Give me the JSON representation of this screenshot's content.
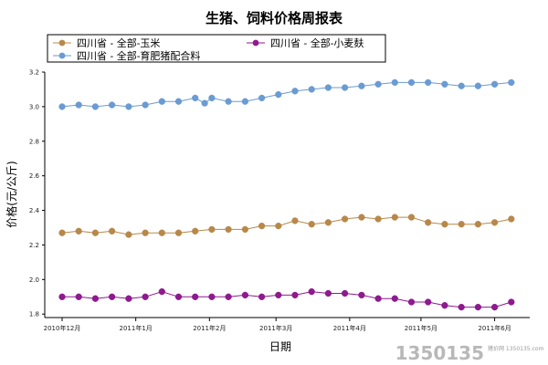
{
  "chart_data": {
    "type": "line",
    "title": "生猪、饲料价格周报表",
    "xlabel": "日期",
    "ylabel": "价格(元/公斤)",
    "ylim": [
      1.78,
      3.2
    ],
    "yticks": [
      "1.8",
      "2.0",
      "2.2",
      "2.4",
      "2.6",
      "2.8",
      "3.0",
      "3.2"
    ],
    "xticks": [
      "2010年12月",
      "2011年1月",
      "2011年2月",
      "2011年3月",
      "2011年4月",
      "2011年5月",
      "2011年6月"
    ],
    "grid": false,
    "legend_position": "top",
    "x_date_start": "2010-12-01",
    "x_date_end": "2011-06-10",
    "series": [
      {
        "name": "四川省 - 全部-玉米",
        "color": "#B8884A",
        "marker": "circle",
        "x": [
          "2010-12-01",
          "2010-12-08",
          "2010-12-15",
          "2010-12-22",
          "2010-12-29",
          "2011-01-05",
          "2011-01-12",
          "2011-01-19",
          "2011-01-26",
          "2011-02-02",
          "2011-02-09",
          "2011-02-16",
          "2011-02-23",
          "2011-03-02",
          "2011-03-09",
          "2011-03-16",
          "2011-03-23",
          "2011-03-30",
          "2011-04-06",
          "2011-04-13",
          "2011-04-20",
          "2011-04-27",
          "2011-05-04",
          "2011-05-11",
          "2011-05-18",
          "2011-05-25",
          "2011-06-01",
          "2011-06-08"
        ],
        "values": [
          2.27,
          2.28,
          2.27,
          2.28,
          2.26,
          2.27,
          2.27,
          2.27,
          2.28,
          2.29,
          2.29,
          2.29,
          2.31,
          2.31,
          2.34,
          2.32,
          2.33,
          2.35,
          2.36,
          2.35,
          2.36,
          2.36,
          2.33,
          2.32,
          2.32,
          2.32,
          2.33,
          2.35
        ]
      },
      {
        "name": "四川省 - 全部-小麦麸",
        "color": "#8E1A8E",
        "marker": "circle",
        "x": [
          "2010-12-01",
          "2010-12-08",
          "2010-12-15",
          "2010-12-22",
          "2010-12-29",
          "2011-01-05",
          "2011-01-12",
          "2011-01-19",
          "2011-01-26",
          "2011-02-02",
          "2011-02-09",
          "2011-02-16",
          "2011-02-23",
          "2011-03-02",
          "2011-03-09",
          "2011-03-16",
          "2011-03-23",
          "2011-03-30",
          "2011-04-06",
          "2011-04-13",
          "2011-04-20",
          "2011-04-27",
          "2011-05-04",
          "2011-05-11",
          "2011-05-18",
          "2011-05-25",
          "2011-06-01",
          "2011-06-08"
        ],
        "values": [
          1.9,
          1.9,
          1.89,
          1.9,
          1.89,
          1.9,
          1.93,
          1.9,
          1.9,
          1.9,
          1.9,
          1.91,
          1.9,
          1.91,
          1.91,
          1.93,
          1.92,
          1.92,
          1.91,
          1.89,
          1.89,
          1.87,
          1.87,
          1.85,
          1.84,
          1.84,
          1.84,
          1.87
        ]
      },
      {
        "name": "四川省 - 全部-育肥猪配合料",
        "color": "#6A9BD2",
        "marker": "circle",
        "x": [
          "2010-12-01",
          "2010-12-08",
          "2010-12-15",
          "2010-12-22",
          "2010-12-29",
          "2011-01-05",
          "2011-01-12",
          "2011-01-19",
          "2011-01-26",
          "2011-01-30",
          "2011-02-02",
          "2011-02-09",
          "2011-02-16",
          "2011-02-23",
          "2011-03-02",
          "2011-03-09",
          "2011-03-16",
          "2011-03-23",
          "2011-03-30",
          "2011-04-06",
          "2011-04-13",
          "2011-04-20",
          "2011-04-27",
          "2011-05-04",
          "2011-05-11",
          "2011-05-18",
          "2011-05-25",
          "2011-06-01",
          "2011-06-08"
        ],
        "values": [
          3.0,
          3.01,
          3.0,
          3.01,
          3.0,
          3.01,
          3.03,
          3.03,
          3.05,
          3.02,
          3.05,
          3.03,
          3.03,
          3.05,
          3.07,
          3.09,
          3.1,
          3.11,
          3.11,
          3.12,
          3.13,
          3.14,
          3.14,
          3.14,
          3.13,
          3.12,
          3.12,
          3.13,
          3.14
        ]
      }
    ]
  },
  "watermark": {
    "text": "1350135",
    "sub": "猪价网  1350135.com",
    "color": "#b8b8b8"
  }
}
